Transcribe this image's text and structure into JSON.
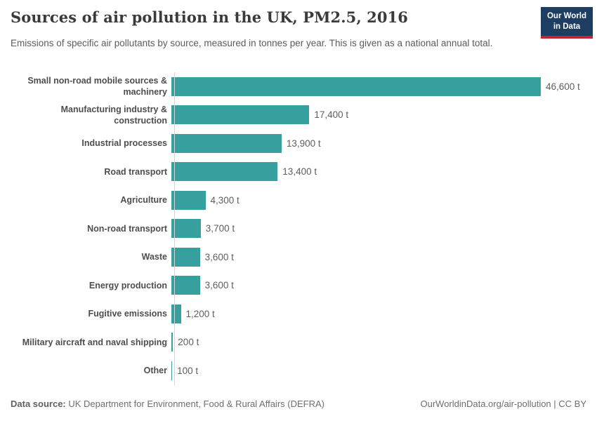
{
  "header": {
    "title": "Sources of air pollution in the UK, PM2.5, 2016",
    "subtitle": "Emissions of specific air pollutants by source, measured in tonnes per year. This is given as a national annual total.",
    "logo": {
      "line1": "Our World",
      "line2": "in Data"
    }
  },
  "chart_data": {
    "type": "bar",
    "orientation": "horizontal",
    "title": "Sources of air pollution in the UK, PM2.5, 2016",
    "subtitle": "Emissions of specific air pollutants by source, measured in tonnes per year. This is given as a national annual total.",
    "categories": [
      "Small non-road mobile sources & machinery",
      "Manufacturing industry & construction",
      "Industrial processes",
      "Road transport",
      "Agriculture",
      "Non-road transport",
      "Waste",
      "Energy production",
      "Fugitive emissions",
      "Military aircraft and naval shipping",
      "Other"
    ],
    "values": [
      46600,
      17400,
      13900,
      13400,
      4300,
      3700,
      3600,
      3600,
      1200,
      200,
      100
    ],
    "value_labels": [
      "46,600 t",
      "17,400 t",
      "13,900 t",
      "13,400 t",
      "4,300 t",
      "3,700 t",
      "3,600 t",
      "3,600 t",
      "1,200 t",
      "200 t",
      "100 t"
    ],
    "unit": "t",
    "xlabel": "",
    "ylabel": "",
    "xlim": [
      0,
      46600
    ],
    "grid": false,
    "legend": "none",
    "bar_color": "#35a09d"
  },
  "footer": {
    "source_label": "Data source:",
    "source_text": " UK Department for Environment, Food & Rural Affairs (DEFRA)",
    "right_text": "OurWorldinData.org/air-pollution | CC BY"
  },
  "colors": {
    "bar": "#35a09d",
    "axis_line": "#d4d4d4",
    "logo_background": "#1d3d63",
    "logo_underline": "#c0253c",
    "title_text": "#3a3a3a",
    "subtitle_text": "#5b5b5b",
    "category_text": "#4e4e4e",
    "value_text": "#5e5e5e",
    "footer_text": "#6e6e6e"
  }
}
